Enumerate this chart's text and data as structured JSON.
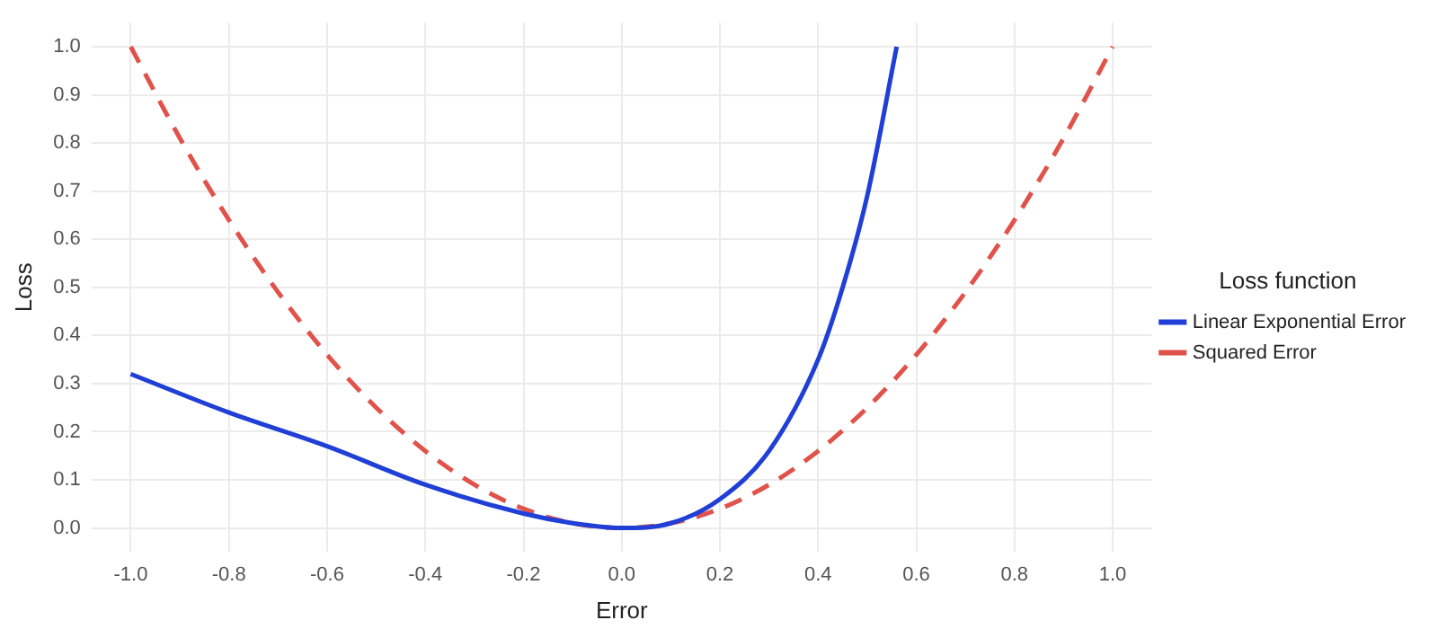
{
  "chart_data": {
    "type": "line",
    "xlabel": "Error",
    "ylabel": "Loss",
    "legend_title": "Loss function",
    "legend": "right",
    "grid": true,
    "marker": "none",
    "xlim": [
      -1.08,
      1.08
    ],
    "xticks": [
      {
        "value": -1,
        "label": "-1.0"
      },
      {
        "value": -0.8,
        "label": "-0.8"
      },
      {
        "value": -0.6,
        "label": "-0.6"
      },
      {
        "value": -0.4,
        "label": "-0.4"
      },
      {
        "value": -0.2,
        "label": "-0.2"
      },
      {
        "value": 0,
        "label": "0.0"
      },
      {
        "value": 0.2,
        "label": "0.2"
      },
      {
        "value": 0.4,
        "label": "0.4"
      },
      {
        "value": 0.6,
        "label": "0.6"
      },
      {
        "value": 0.8,
        "label": "0.8"
      },
      {
        "value": 1,
        "label": "1.0"
      }
    ],
    "ylim": [
      -0.05,
      1.05
    ],
    "yticks": [
      {
        "value": 0,
        "label": "0.0"
      },
      {
        "value": 0.1,
        "label": "0.1"
      },
      {
        "value": 0.2,
        "label": "0.2"
      },
      {
        "value": 0.3,
        "label": "0.3"
      },
      {
        "value": 0.4,
        "label": "0.4"
      },
      {
        "value": 0.5,
        "label": "0.5"
      },
      {
        "value": 0.6,
        "label": "0.6"
      },
      {
        "value": 0.7,
        "label": "0.7"
      },
      {
        "value": 0.8,
        "label": "0.8"
      },
      {
        "value": 0.9,
        "label": "0.9"
      },
      {
        "value": 1,
        "label": "1.0"
      }
    ],
    "series": [
      {
        "name": "Linear Exponential Error",
        "color": "#1f3fd6",
        "line_style": "solid",
        "x": [
          -1,
          -0.8,
          -0.6,
          -0.4,
          -0.2,
          -0.1,
          0,
          0.1,
          0.2,
          0.3,
          0.4,
          0.45,
          0.5,
          0.56
        ],
        "values": [
          0.32,
          0.24,
          0.17,
          0.09,
          0.03,
          0.01,
          0,
          0.01,
          0.06,
          0.16,
          0.35,
          0.5,
          0.69,
          1
        ]
      },
      {
        "name": "Squared Error",
        "color": "#e0524a",
        "line_style": "dashed",
        "x": [
          -1,
          -0.9,
          -0.8,
          -0.7,
          -0.6,
          -0.5,
          -0.4,
          -0.3,
          -0.2,
          -0.1,
          0,
          0.1,
          0.2,
          0.3,
          0.4,
          0.5,
          0.6,
          0.7,
          0.8,
          0.9,
          1
        ],
        "values": [
          1,
          0.81,
          0.64,
          0.49,
          0.36,
          0.25,
          0.16,
          0.09,
          0.04,
          0.01,
          0,
          0.01,
          0.04,
          0.09,
          0.16,
          0.25,
          0.36,
          0.49,
          0.64,
          0.81,
          1
        ]
      }
    ]
  }
}
